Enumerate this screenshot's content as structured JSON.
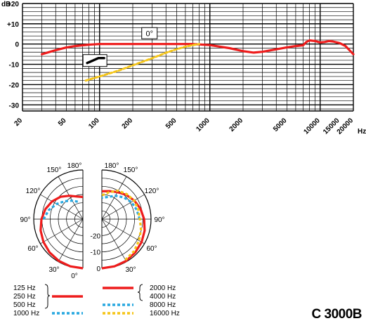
{
  "model": "C 3000B",
  "chart_data": [
    {
      "type": "line",
      "title": "",
      "xlabel": "Hz",
      "ylabel": "dB",
      "xscale": "log",
      "xlim": [
        20,
        20000
      ],
      "ylim": [
        -33,
        20
      ],
      "x_ticks": [
        {
          "v": 20,
          "label": "20"
        },
        {
          "v": 50,
          "label": "50"
        },
        {
          "v": 100,
          "label": "100"
        },
        {
          "v": 200,
          "label": "200"
        },
        {
          "v": 500,
          "label": "500"
        },
        {
          "v": 1000,
          "label": "1000"
        },
        {
          "v": 2000,
          "label": "2000"
        },
        {
          "v": 5000,
          "label": "5000"
        },
        {
          "v": 10000,
          "label": "10000"
        },
        {
          "v": 15000,
          "label": "15000"
        },
        {
          "v": 20000,
          "label": "20000"
        }
      ],
      "y_ticks": [
        {
          "v": 20,
          "label": "+20"
        },
        {
          "v": 10,
          "label": "+10"
        },
        {
          "v": 0,
          "label": "0"
        },
        {
          "v": -10,
          "label": "-10"
        },
        {
          "v": -20,
          "label": "-20"
        },
        {
          "v": -30,
          "label": "-30"
        }
      ],
      "annotation": "0°",
      "grid": true,
      "series": [
        {
          "name": "",
          "color": "#ee1c1c",
          "style": "solid",
          "points": [
            [
              30,
              -5
            ],
            [
              40,
              -3
            ],
            [
              50,
              -1.7
            ],
            [
              60,
              -1
            ],
            [
              70,
              -0.6
            ],
            [
              80,
              -0.3
            ],
            [
              100,
              0
            ],
            [
              150,
              0
            ],
            [
              200,
              0
            ],
            [
              300,
              0
            ],
            [
              500,
              0
            ],
            [
              700,
              0
            ],
            [
              1000,
              -0.5
            ],
            [
              1500,
              -2
            ],
            [
              2000,
              -3.5
            ],
            [
              2500,
              -4.2
            ],
            [
              3000,
              -3.8
            ],
            [
              4000,
              -2.6
            ],
            [
              5000,
              -1.6
            ],
            [
              6000,
              -1
            ],
            [
              7000,
              -0.6
            ],
            [
              7500,
              1
            ],
            [
              8000,
              1.8
            ],
            [
              9000,
              1.5
            ],
            [
              10000,
              0.8
            ],
            [
              11000,
              1
            ],
            [
              12000,
              1.5
            ],
            [
              13000,
              1.3
            ],
            [
              15000,
              0.5
            ],
            [
              17000,
              -1
            ],
            [
              20000,
              -5
            ]
          ]
        },
        {
          "name": "",
          "color": "#f5c518",
          "style": "dashed",
          "points": [
            [
              75,
              -18
            ],
            [
              100,
              -16
            ],
            [
              150,
              -13
            ],
            [
              200,
              -10.5
            ],
            [
              300,
              -7
            ],
            [
              400,
              -4.3
            ],
            [
              500,
              -2.5
            ],
            [
              600,
              -1.3
            ],
            [
              700,
              -0.5
            ],
            [
              800,
              0
            ]
          ]
        }
      ]
    },
    {
      "type": "polar",
      "title": "",
      "rlabels": [
        "0",
        "-10",
        "-20"
      ],
      "angle_labels": [
        "0°",
        "30°",
        "60°",
        "90°",
        "120°",
        "150°",
        "180°"
      ],
      "series": [
        {
          "name": "125 Hz",
          "group": "left",
          "color": "#ee1c1c",
          "style": "solid",
          "points": [
            [
              0,
              0
            ],
            [
              15,
              -0.2
            ],
            [
              30,
              -0.6
            ],
            [
              45,
              -1.3
            ],
            [
              60,
              -2.2
            ],
            [
              75,
              -3.3
            ],
            [
              90,
              -4.7
            ],
            [
              105,
              -6.3
            ],
            [
              120,
              -8.3
            ],
            [
              135,
              -10.7
            ],
            [
              150,
              -13.5
            ],
            [
              165,
              -15.7
            ],
            [
              180,
              -16.5
            ]
          ]
        },
        {
          "name": "250 Hz",
          "group": "left",
          "color": "#ee1c1c",
          "style": "solid",
          "points": [
            [
              0,
              0
            ],
            [
              15,
              -0.2
            ],
            [
              30,
              -0.6
            ],
            [
              45,
              -1.3
            ],
            [
              60,
              -2.2
            ],
            [
              75,
              -3.3
            ],
            [
              90,
              -4.7
            ],
            [
              105,
              -6.3
            ],
            [
              120,
              -8.3
            ],
            [
              135,
              -10.7
            ],
            [
              150,
              -13.5
            ],
            [
              165,
              -15.7
            ],
            [
              180,
              -16.5
            ]
          ]
        },
        {
          "name": "500 Hz",
          "group": "left",
          "color": "#ee1c1c",
          "style": "solid",
          "points": [
            [
              0,
              0
            ],
            [
              15,
              -0.2
            ],
            [
              30,
              -0.6
            ],
            [
              45,
              -1.3
            ],
            [
              60,
              -2.2
            ],
            [
              75,
              -3.3
            ],
            [
              90,
              -4.7
            ],
            [
              105,
              -6.3
            ],
            [
              120,
              -8.3
            ],
            [
              135,
              -10.7
            ],
            [
              150,
              -13.5
            ],
            [
              165,
              -15.7
            ],
            [
              180,
              -16.5
            ]
          ]
        },
        {
          "name": "1000 Hz",
          "group": "left",
          "color": "#29a8e0",
          "style": "dashed",
          "points": [
            [
              90,
              -6
            ],
            [
              105,
              -8.5
            ],
            [
              120,
              -11.5
            ],
            [
              135,
              -14.5
            ],
            [
              150,
              -17
            ],
            [
              160,
              -18.5
            ],
            [
              170,
              -19.5
            ]
          ]
        },
        {
          "name": "2000 Hz",
          "group": "right",
          "color": "#ee1c1c",
          "style": "solid",
          "points": [
            [
              0,
              0
            ],
            [
              15,
              -0.2
            ],
            [
              30,
              -0.5
            ],
            [
              45,
              -1.2
            ],
            [
              60,
              -2
            ],
            [
              75,
              -3
            ],
            [
              90,
              -4.2
            ],
            [
              105,
              -5.6
            ],
            [
              120,
              -7.2
            ],
            [
              135,
              -9
            ],
            [
              150,
              -11
            ],
            [
              165,
              -12.3
            ],
            [
              180,
              -13
            ]
          ]
        },
        {
          "name": "4000 Hz",
          "group": "right",
          "color": "#29a8e0",
          "style": "dashed",
          "points": [
            [
              90,
              -7
            ],
            [
              105,
              -8
            ],
            [
              120,
              -9.2
            ],
            [
              135,
              -11.2
            ],
            [
              150,
              -13.5
            ],
            [
              165,
              -16
            ],
            [
              180,
              -17
            ]
          ]
        },
        {
          "name": "8000 Hz",
          "group": "right",
          "color": "#29a8e0",
          "style": "dashed",
          "points": [
            [
              90,
              -7
            ],
            [
              105,
              -8
            ],
            [
              120,
              -9.2
            ],
            [
              135,
              -11.2
            ],
            [
              150,
              -13.5
            ],
            [
              165,
              -16
            ],
            [
              180,
              -17
            ]
          ]
        },
        {
          "name": "16000 Hz",
          "group": "right",
          "color": "#f5c518",
          "style": "dashed",
          "points": [
            [
              30,
              -1.3
            ],
            [
              45,
              -2.3
            ],
            [
              60,
              -3.8
            ],
            [
              75,
              -5.3
            ],
            [
              90,
              -6.8
            ],
            [
              105,
              -7
            ],
            [
              120,
              -7.3
            ],
            [
              135,
              -8.5
            ],
            [
              150,
              -10
            ],
            [
              165,
              -13
            ],
            [
              180,
              -15.5
            ]
          ]
        }
      ]
    }
  ]
}
